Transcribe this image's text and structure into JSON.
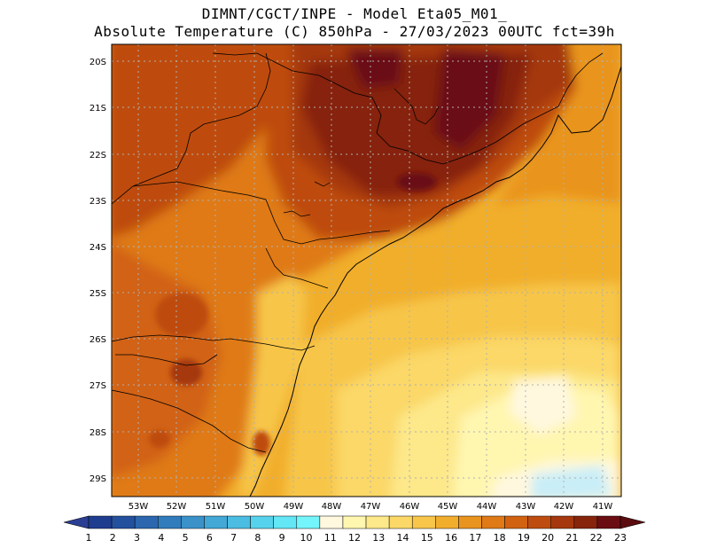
{
  "title_line1": "DIMNT/CGCT/INPE -  Model Eta05_M01_",
  "title_line2": "Absolute Temperature (C) 850hPa -  27/03/2023 00UTC fct=39h",
  "lat_labels": [
    "20S",
    "21S",
    "22S",
    "23S",
    "24S",
    "25S",
    "26S",
    "27S",
    "28S",
    "29S"
  ],
  "lon_labels": [
    "53W",
    "52W",
    "51W",
    "50W",
    "49W",
    "48W",
    "47W",
    "46W",
    "45W",
    "44W",
    "43W",
    "42W",
    "41W"
  ],
  "colorbar": {
    "labels": [
      "1",
      "2",
      "3",
      "4",
      "5",
      "6",
      "7",
      "8",
      "9",
      "10",
      "11",
      "12",
      "13",
      "14",
      "15",
      "16",
      "17",
      "18",
      "19",
      "20",
      "21",
      "22",
      "23"
    ],
    "colors": [
      "#1f3d8f",
      "#23519e",
      "#2b66ae",
      "#317cbc",
      "#3a92c9",
      "#43a8d6",
      "#4cbde2",
      "#57d2ec",
      "#63e6f5",
      "#74f5fb",
      "#fff8df",
      "#fff6b0",
      "#fde88a",
      "#fbd867",
      "#f7c64a",
      "#f1ae2c",
      "#e9941f",
      "#df7a17",
      "#d16212",
      "#be4c10",
      "#a5380e",
      "#86240c",
      "#6a0e14"
    ],
    "under_color": "#2a3f93",
    "over_color": "#5a0c0e"
  },
  "legend_colors": {
    "grid": "#b0b0b0",
    "coast": "#000000"
  }
}
